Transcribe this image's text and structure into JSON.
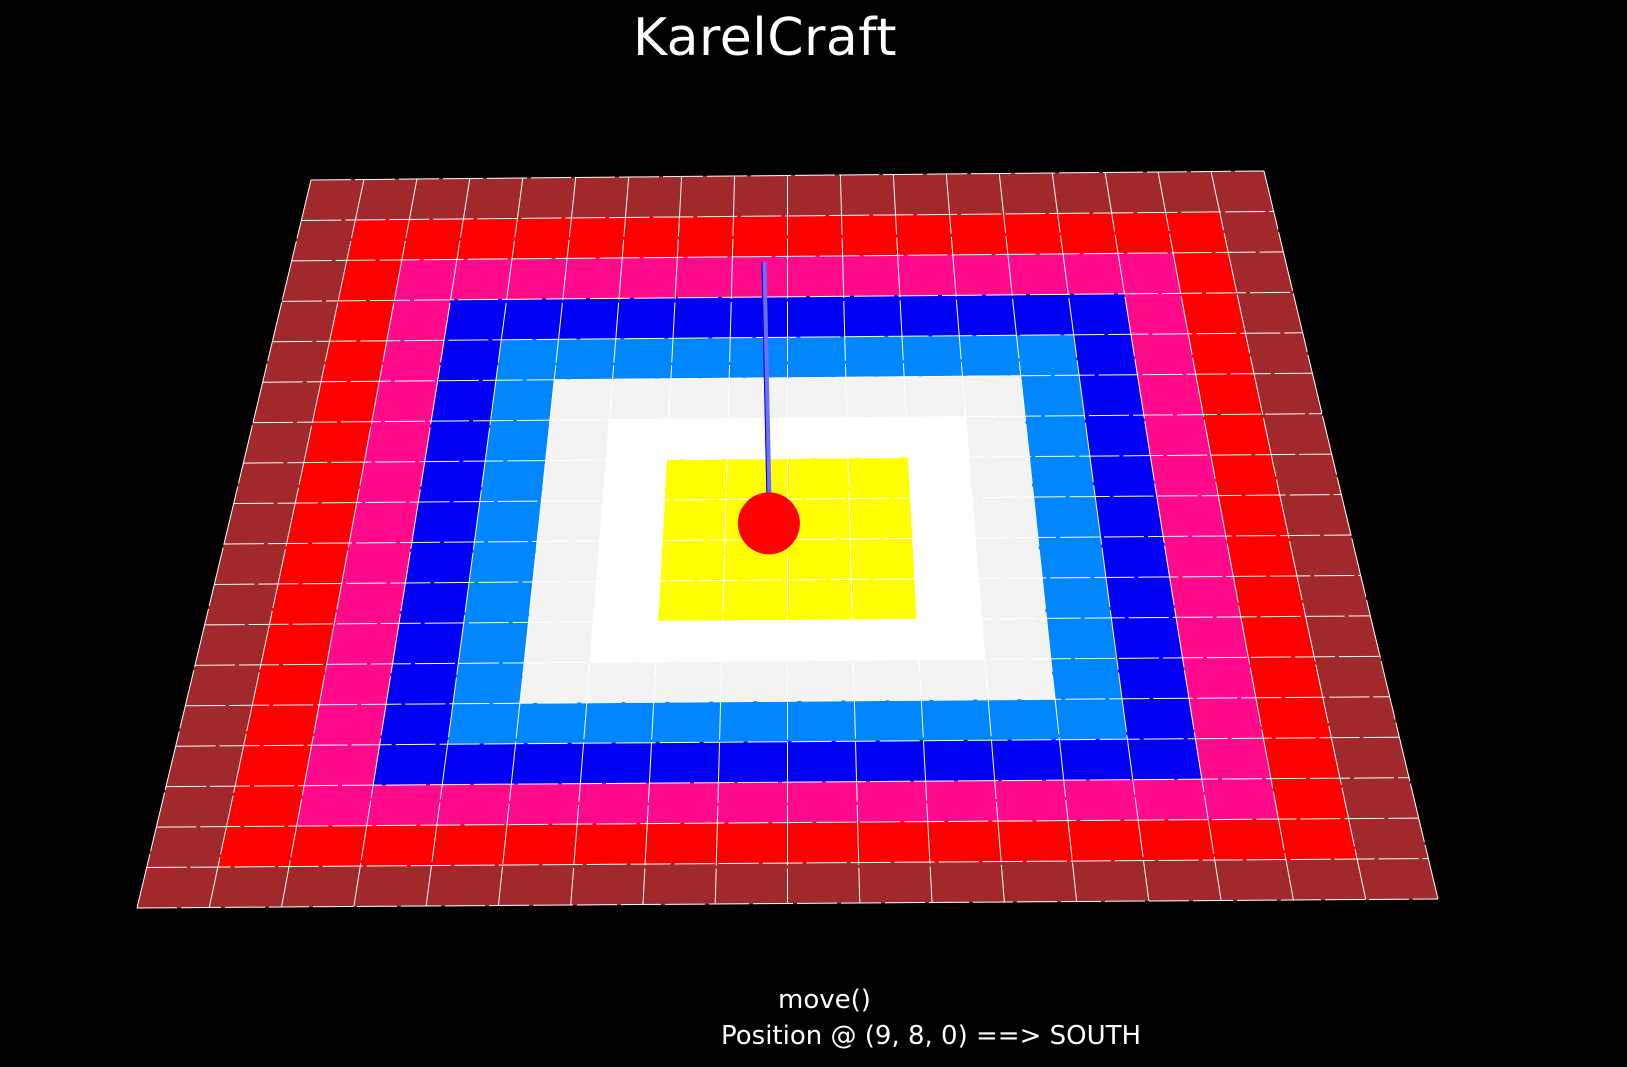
{
  "app": {
    "title": "KarelCraft"
  },
  "status": {
    "last_command": "move()",
    "position_text": "Position @ (9, 8, 0) ==> SOUTH"
  },
  "world": {
    "grid_size": 18,
    "ring_colors": [
      "#a2292b",
      "#ff0000",
      "#ff0a8a",
      "#0000f5",
      "#0086ff",
      "#f3f3f3",
      "#ffffff",
      "#ffff00"
    ],
    "grid_line_color": "#ffffff",
    "karel": {
      "column": 9,
      "row": 8,
      "level": 0,
      "facing": "SOUTH",
      "body_color": "#ff0000",
      "mast_color": "#6f6fff"
    }
  }
}
